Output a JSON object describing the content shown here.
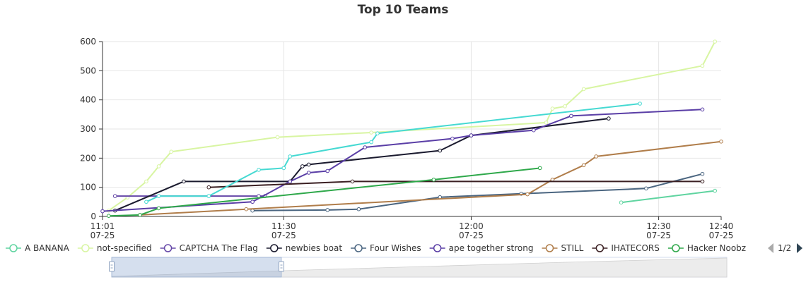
{
  "chart_data": {
    "type": "line",
    "title": "Top 10 Teams",
    "xlabel": "",
    "ylabel": "",
    "ylim": [
      0,
      600
    ],
    "y_ticks": [
      0,
      100,
      200,
      300,
      400,
      500,
      600
    ],
    "x_range": [
      "07-25 11:01",
      "07-25 12:40"
    ],
    "x_ticks": [
      {
        "time": "11:01",
        "date": "07-25"
      },
      {
        "time": "11:30",
        "date": "07-25"
      },
      {
        "time": "12:00",
        "date": "07-25"
      },
      {
        "time": "12:30",
        "date": "07-25"
      },
      {
        "time": "12:40",
        "date": "07-25"
      }
    ],
    "grid": true,
    "legend_position": "bottom",
    "legend_page": "1/2",
    "series": [
      {
        "name": "A BANANA",
        "color": "#5fd4a0",
        "points": [
          [
            "12:24",
            48
          ],
          [
            "12:39",
            88
          ]
        ]
      },
      {
        "name": "not-specified",
        "color": "#d8f5a2",
        "points": [
          [
            "11:02",
            20
          ],
          [
            "11:05",
            65
          ],
          [
            "11:08",
            120
          ],
          [
            "11:10",
            172
          ],
          [
            "11:12",
            222
          ],
          [
            "11:29",
            272
          ],
          [
            "11:44",
            288
          ],
          [
            "12:12",
            322
          ],
          [
            "12:13",
            370
          ],
          [
            "12:15",
            378
          ],
          [
            "12:18",
            437
          ],
          [
            "12:37",
            517
          ],
          [
            "12:39",
            600
          ]
        ]
      },
      {
        "name": "CAPTCHA The Flag",
        "color": "#6648a8",
        "points": [
          [
            "11:03",
            70
          ],
          [
            "11:26",
            70
          ],
          [
            "11:27",
            70
          ]
        ]
      },
      {
        "name": "newbies boat",
        "color": "#1a1a2e",
        "points": [
          [
            "11:03",
            20
          ],
          [
            "11:14",
            120
          ],
          [
            "11:31",
            120
          ],
          [
            "11:33",
            172
          ],
          [
            "11:34",
            178
          ],
          [
            "11:55",
            226
          ],
          [
            "12:00",
            278
          ],
          [
            "12:22",
            336
          ]
        ]
      },
      {
        "name": "Four Wishes",
        "color": "#4a6580",
        "points": [
          [
            "11:25",
            20
          ],
          [
            "11:37",
            22
          ],
          [
            "11:42",
            25
          ],
          [
            "11:55",
            66
          ],
          [
            "12:08",
            78
          ],
          [
            "12:28",
            96
          ],
          [
            "12:37",
            146
          ]
        ]
      },
      {
        "name": "ape together strong",
        "color": "#5a3ea6",
        "points": [
          [
            "11:01",
            18
          ],
          [
            "11:25",
            50
          ],
          [
            "11:31",
            120
          ],
          [
            "11:34",
            150
          ],
          [
            "11:37",
            156
          ],
          [
            "11:43",
            237
          ],
          [
            "11:57",
            267
          ],
          [
            "12:00",
            278
          ],
          [
            "12:10",
            296
          ],
          [
            "12:16",
            345
          ],
          [
            "12:37",
            367
          ]
        ]
      },
      {
        "name": "STILL",
        "color": "#b07d4a",
        "points": [
          [
            "11:07",
            5
          ],
          [
            "11:24",
            25
          ],
          [
            "12:09",
            76
          ],
          [
            "12:13",
            126
          ],
          [
            "12:18",
            176
          ],
          [
            "12:20",
            206
          ],
          [
            "12:40",
            257
          ]
        ]
      },
      {
        "name": "IHATECORS",
        "color": "#3a1f22",
        "points": [
          [
            "11:18",
            100
          ],
          [
            "11:41",
            120
          ],
          [
            "12:37",
            120
          ]
        ]
      },
      {
        "name": "Hacker Noobz",
        "color": "#2ea84a",
        "points": [
          [
            "11:02",
            2
          ],
          [
            "11:07",
            5
          ],
          [
            "11:10",
            28
          ],
          [
            "11:54",
            126
          ],
          [
            "12:11",
            166
          ]
        ]
      },
      {
        "name": "",
        "color": "#45d9d2",
        "points": [
          [
            "11:08",
            50
          ],
          [
            "11:10",
            70
          ],
          [
            "11:18",
            70
          ],
          [
            "11:26",
            160
          ],
          [
            "11:30",
            166
          ],
          [
            "11:31",
            206
          ],
          [
            "11:44",
            255
          ],
          [
            "11:45",
            285
          ],
          [
            "12:27",
            387
          ]
        ]
      }
    ]
  }
}
